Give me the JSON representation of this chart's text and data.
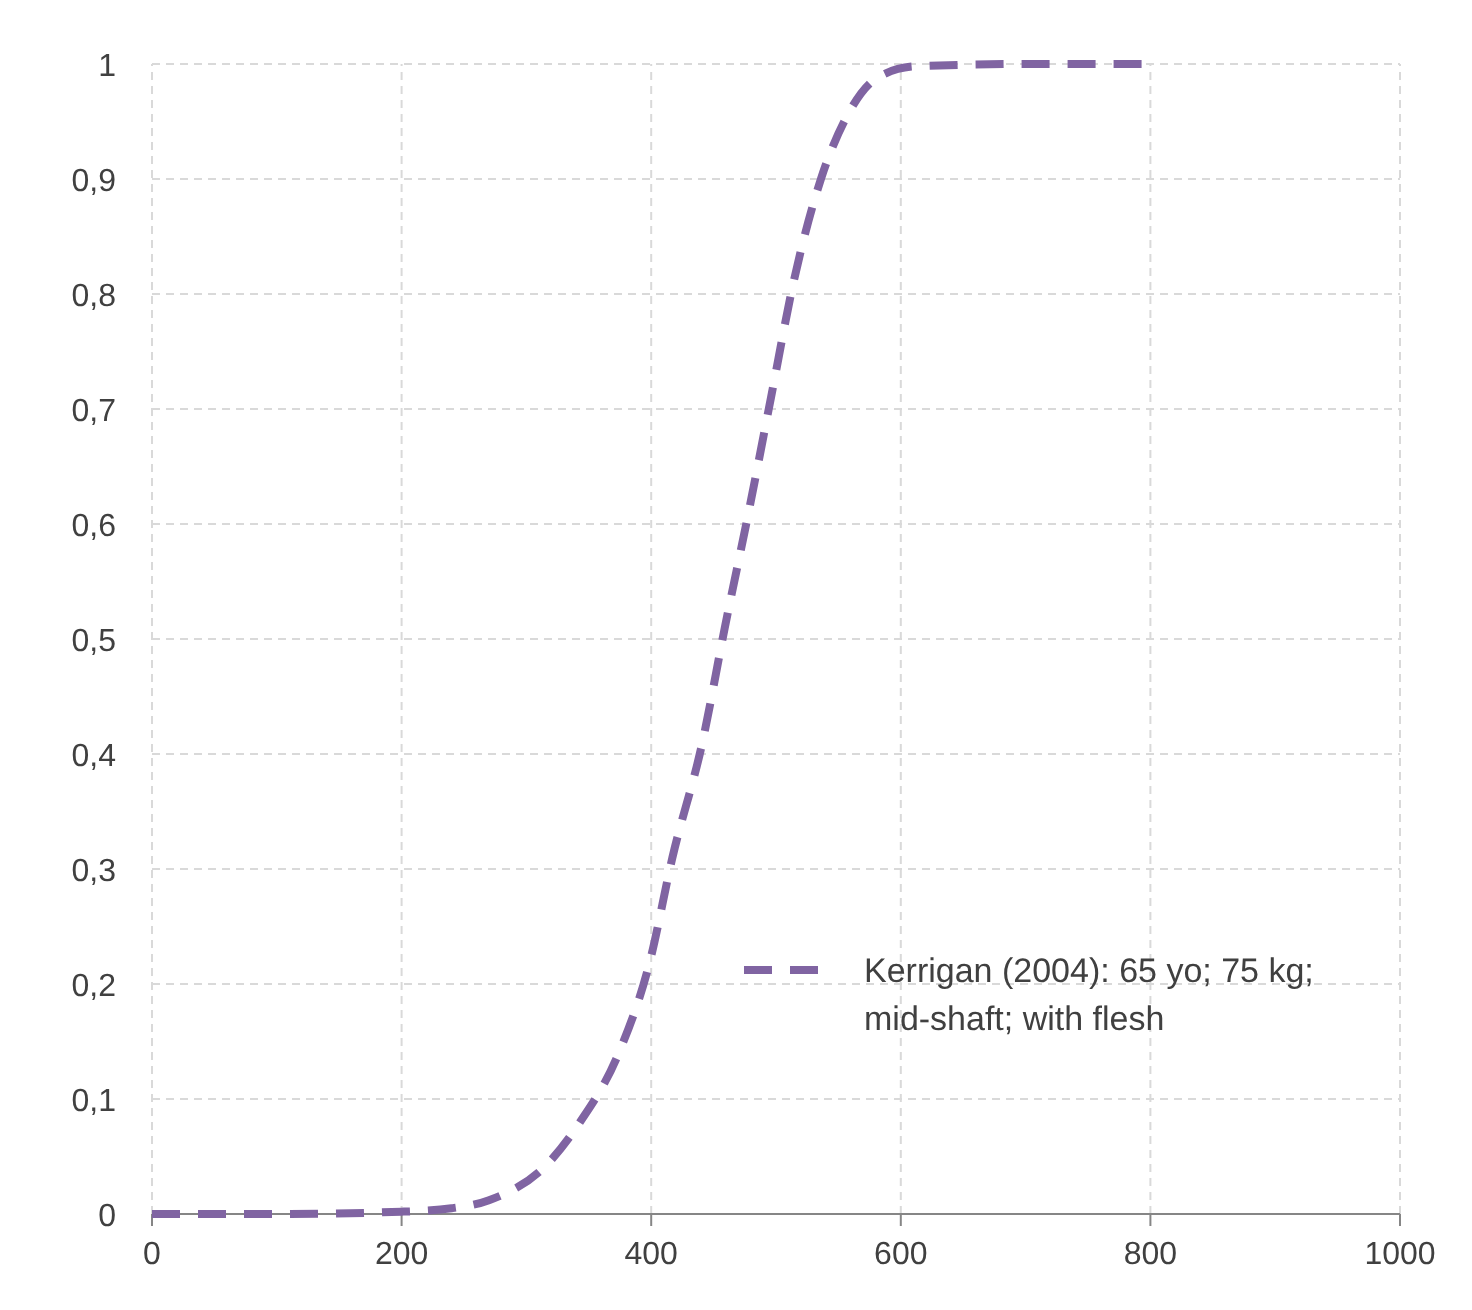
{
  "chart_data": {
    "type": "line",
    "xlim": [
      0,
      1000
    ],
    "xticks": [
      0,
      200,
      400,
      600,
      800,
      1000
    ],
    "ylim": [
      0,
      1
    ],
    "yticks": [
      0,
      {
        "value": 0.1,
        "label": "0,1"
      },
      {
        "value": 0.2,
        "label": "0,2"
      },
      {
        "value": 0.3,
        "label": "0,3"
      },
      {
        "value": 0.4,
        "label": "0,4"
      },
      {
        "value": 0.5,
        "label": "0,5"
      },
      {
        "value": 0.6,
        "label": "0,6"
      },
      {
        "value": 0.7,
        "label": "0,7"
      },
      {
        "value": 0.8,
        "label": "0,8"
      },
      {
        "value": 0.9,
        "label": "0,9"
      },
      1
    ],
    "grid": true,
    "legend": "right",
    "line_style": "dashed",
    "marker": "none",
    "series": [
      {
        "name": "Kerrigan (2004): 65 yo; 75 kg; mid-shaft; with flesh",
        "color": "#8064a2",
        "x": [
          0,
          100,
          200,
          240,
          270,
          319,
          343,
          374,
          399,
          417,
          441,
          459,
          478,
          496,
          514,
          536,
          557,
          581,
          612,
          700,
          800
        ],
        "values": [
          0,
          0,
          0.002,
          0.005,
          0.012,
          0.046,
          0.08,
          0.14,
          0.22,
          0.31,
          0.41,
          0.51,
          0.61,
          0.71,
          0.81,
          0.9,
          0.955,
          0.988,
          0.998,
          1,
          1
        ]
      }
    ]
  }
}
